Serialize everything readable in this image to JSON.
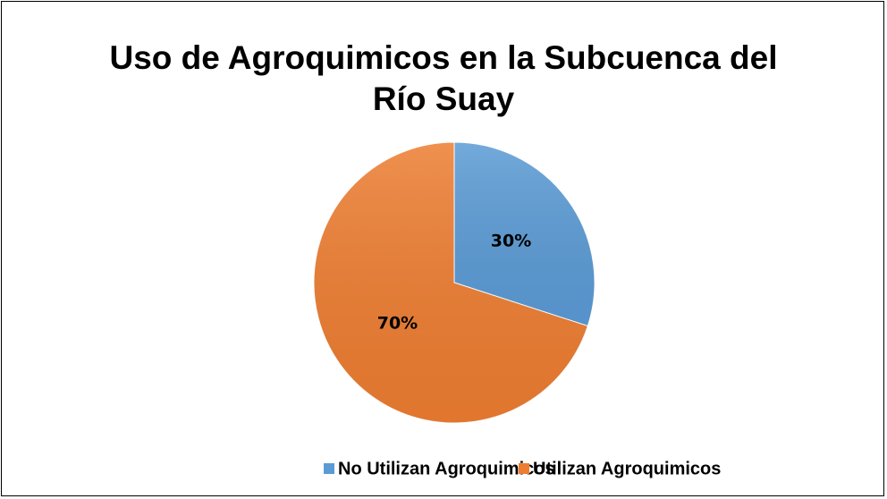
{
  "chart_data": {
    "type": "pie",
    "title": "Uso de Agroquimicos en la Subcuenca del Río Suay",
    "categories": [
      "No Utilizan Agroquimicos",
      "Utilizan Agroquimicos"
    ],
    "values": [
      30,
      70
    ],
    "value_labels": [
      "30%",
      "70%"
    ],
    "colors": [
      "#5b9bd5",
      "#ed7d31"
    ],
    "legend": "bottom"
  }
}
